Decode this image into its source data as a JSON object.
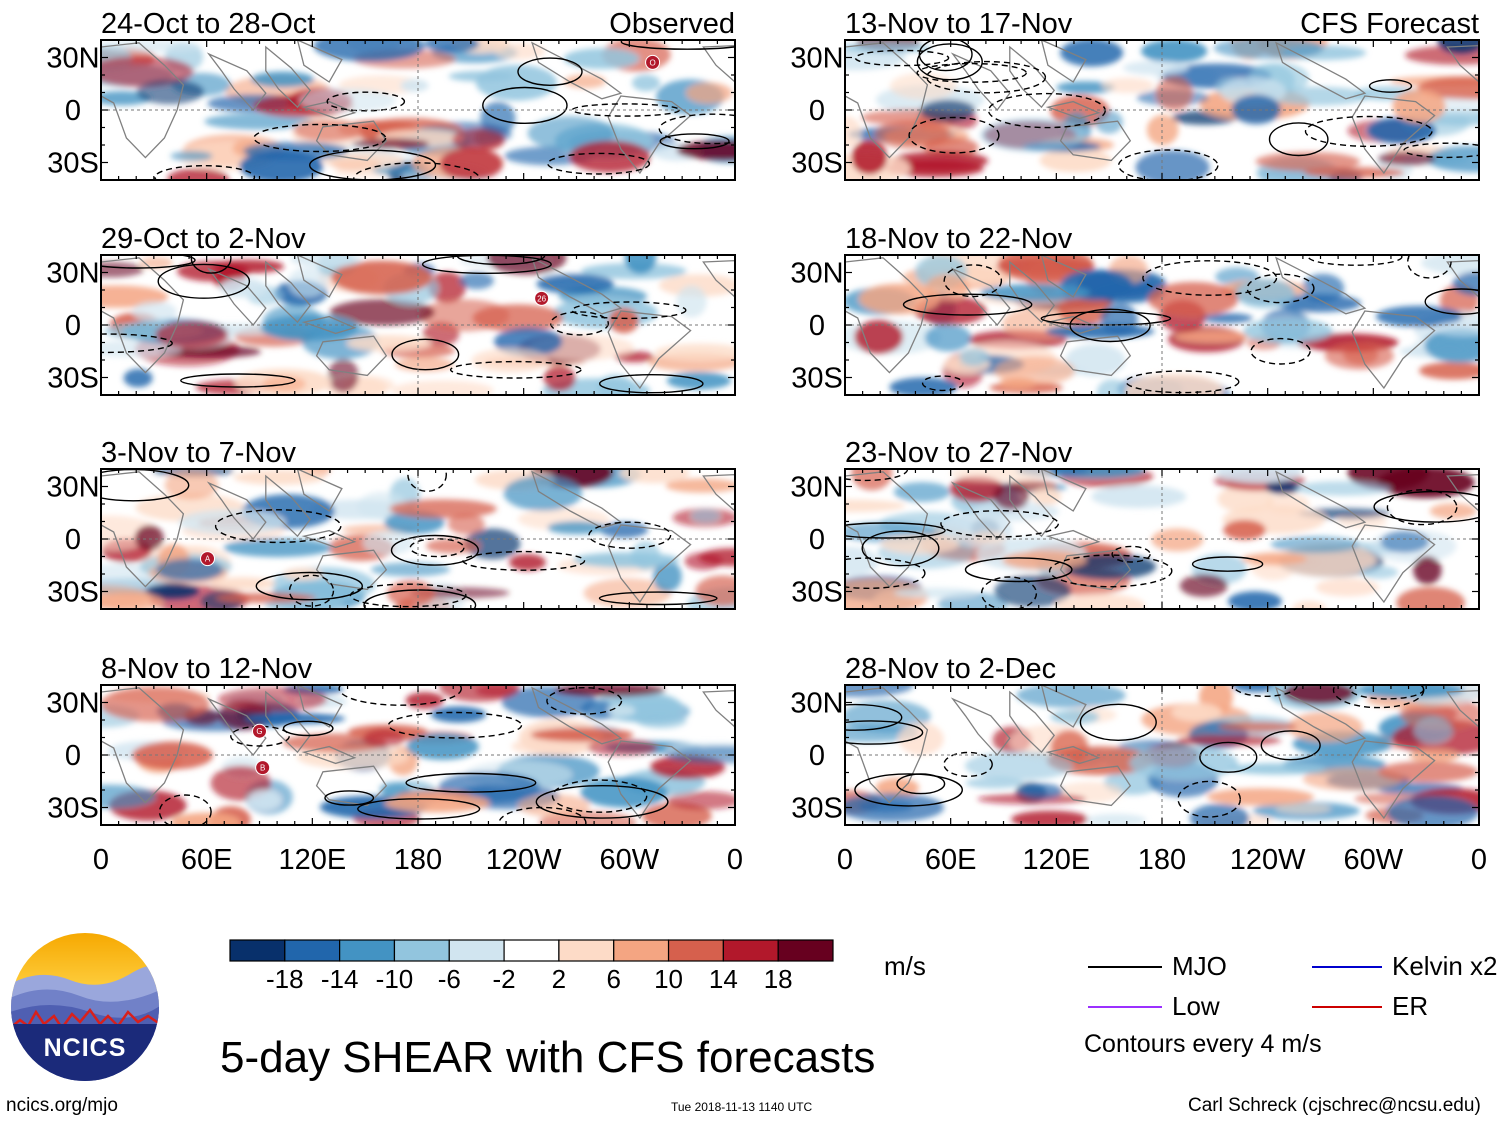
{
  "chart_data": {
    "type": "heatmap",
    "title": "5-day SHEAR with CFS forecasts",
    "variable": "SHEAR",
    "panels": [
      {
        "period": "24-Oct to 28-Oct",
        "source": "Observed",
        "storms": [
          "O"
        ]
      },
      {
        "period": "29-Oct to 2-Nov",
        "source": "",
        "storms": [
          "26"
        ]
      },
      {
        "period": "3-Nov to 7-Nov",
        "source": "",
        "storms": [
          "A"
        ]
      },
      {
        "period": "8-Nov to 12-Nov",
        "source": "",
        "storms": [
          "G",
          "B"
        ]
      },
      {
        "period": "13-Nov to 17-Nov",
        "source": "CFS Forecast",
        "storms": []
      },
      {
        "period": "18-Nov to 22-Nov",
        "source": "",
        "storms": []
      },
      {
        "period": "23-Nov to 27-Nov",
        "source": "",
        "storms": []
      },
      {
        "period": "28-Nov to 2-Dec",
        "source": "",
        "storms": []
      }
    ],
    "x_ticks": [
      "0",
      "60E",
      "120E",
      "180",
      "120W",
      "60W",
      "0"
    ],
    "y_ticks": [
      "30N",
      "0",
      "30S"
    ],
    "xlim_deg_east": [
      0,
      360
    ],
    "ylim_deg_lat": [
      -40,
      40
    ],
    "colorbar": {
      "units": "m/s",
      "levels": [
        -22,
        -18,
        -14,
        -10,
        -6,
        -2,
        2,
        6,
        10,
        14,
        18,
        22
      ],
      "tick_labels": [
        "-18",
        "-14",
        "-10",
        "-6",
        "-2",
        "2",
        "6",
        "10",
        "14",
        "18"
      ],
      "colors": [
        "#08306b",
        "#2166ac",
        "#4393c3",
        "#92c5de",
        "#d1e5f0",
        "#ffffff",
        "#fddbc7",
        "#f4a582",
        "#d6604d",
        "#b2182b",
        "#67001f"
      ]
    },
    "contour_legend": [
      {
        "label": "MJO",
        "color": "#000000"
      },
      {
        "label": "Low",
        "color": "#9b30ff"
      },
      {
        "label": "Kelvin x2",
        "color": "#0000cd"
      },
      {
        "label": "ER",
        "color": "#cc0000"
      }
    ],
    "contour_note": "Contours every 4 m/s"
  },
  "footer": {
    "logo_text": "NCICS",
    "site": "ncics.org/mjo",
    "timestamp": "Tue 2018-11-13 1140 UTC",
    "credit": "Carl Schreck (cjschrec@ncsu.edu)"
  }
}
